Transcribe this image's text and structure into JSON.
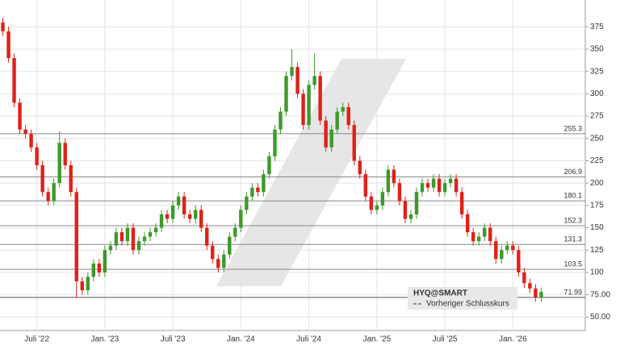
{
  "chart_data": {
    "type": "candlestick",
    "categories": [
      null,
      null,
      null,
      null,
      null,
      null,
      "Juli '22",
      null,
      null,
      null,
      null,
      null,
      null,
      null,
      null,
      null,
      null,
      null,
      "Jan. '23",
      null,
      null,
      null,
      null,
      null,
      null,
      null,
      null,
      null,
      null,
      null,
      "Juli '23",
      null,
      null,
      null,
      null,
      null,
      null,
      null,
      null,
      null,
      null,
      null,
      "Jan. '24",
      null,
      null,
      null,
      null,
      null,
      null,
      null,
      null,
      null,
      null,
      null,
      "Juli '24",
      null,
      null,
      null,
      null,
      null,
      null,
      null,
      null,
      null,
      null,
      null,
      "Jan. '25",
      null,
      null,
      null,
      null,
      null,
      null,
      null,
      null,
      null,
      null,
      null,
      "Juli '25",
      null,
      null,
      null,
      null,
      null,
      null,
      null,
      null,
      null,
      null,
      null,
      "Jan. '26",
      null,
      null,
      null,
      null,
      null
    ],
    "series": [
      {
        "name": "HYQ@SMART",
        "open": [
          380,
          370,
          340,
          290,
          260,
          255,
          240,
          220,
          190,
          180,
          200,
          245,
          220,
          190,
          90,
          80,
          95,
          110,
          100,
          125,
          130,
          145,
          135,
          150,
          125,
          135,
          140,
          145,
          150,
          165,
          160,
          175,
          185,
          165,
          160,
          170,
          150,
          130,
          115,
          105,
          120,
          140,
          150,
          170,
          185,
          195,
          190,
          210,
          230,
          260,
          280,
          320,
          330,
          300,
          265,
          310,
          320,
          270,
          240,
          260,
          280,
          285,
          265,
          225,
          210,
          185,
          170,
          175,
          190,
          215,
          200,
          180,
          160,
          165,
          190,
          200,
          195,
          205,
          190,
          200,
          205,
          190,
          165,
          145,
          135,
          140,
          150,
          135,
          115,
          125,
          130,
          125,
          100,
          88,
          82,
          72
        ],
        "high": [
          385,
          375,
          345,
          295,
          265,
          260,
          245,
          225,
          195,
          205,
          258,
          250,
          225,
          195,
          95,
          100,
          115,
          115,
          130,
          135,
          150,
          150,
          155,
          155,
          140,
          145,
          150,
          155,
          170,
          170,
          180,
          190,
          190,
          170,
          175,
          175,
          155,
          135,
          120,
          125,
          145,
          155,
          175,
          190,
          200,
          200,
          215,
          235,
          265,
          285,
          325,
          350,
          335,
          305,
          315,
          345,
          325,
          275,
          265,
          285,
          290,
          290,
          270,
          230,
          215,
          190,
          180,
          195,
          220,
          220,
          205,
          185,
          170,
          195,
          205,
          205,
          210,
          210,
          205,
          210,
          210,
          195,
          170,
          150,
          145,
          155,
          155,
          140,
          130,
          135,
          135,
          130,
          105,
          93,
          87,
          83
        ],
        "low": [
          365,
          335,
          285,
          255,
          250,
          235,
          215,
          185,
          175,
          175,
          195,
          215,
          185,
          72,
          75,
          75,
          90,
          95,
          95,
          120,
          125,
          130,
          130,
          120,
          120,
          130,
          135,
          140,
          145,
          155,
          155,
          170,
          160,
          155,
          155,
          145,
          125,
          110,
          100,
          100,
          115,
          135,
          145,
          165,
          180,
          185,
          185,
          205,
          225,
          255,
          275,
          315,
          295,
          260,
          260,
          305,
          265,
          235,
          235,
          255,
          275,
          260,
          220,
          205,
          180,
          165,
          165,
          170,
          185,
          195,
          175,
          155,
          155,
          160,
          185,
          190,
          190,
          185,
          185,
          195,
          185,
          160,
          140,
          130,
          130,
          135,
          130,
          110,
          110,
          120,
          120,
          95,
          83,
          77,
          67,
          67
        ],
        "close": [
          370,
          340,
          290,
          260,
          255,
          240,
          220,
          190,
          180,
          200,
          245,
          220,
          190,
          90,
          80,
          95,
          110,
          100,
          125,
          130,
          145,
          135,
          150,
          125,
          135,
          140,
          145,
          150,
          165,
          160,
          175,
          185,
          165,
          160,
          170,
          150,
          130,
          115,
          105,
          120,
          140,
          150,
          170,
          185,
          195,
          190,
          210,
          230,
          260,
          280,
          320,
          330,
          300,
          265,
          310,
          320,
          270,
          240,
          260,
          280,
          285,
          265,
          225,
          210,
          185,
          170,
          175,
          190,
          215,
          200,
          180,
          160,
          165,
          190,
          200,
          195,
          205,
          190,
          200,
          205,
          190,
          165,
          145,
          135,
          140,
          150,
          135,
          115,
          125,
          130,
          125,
          100,
          88,
          82,
          72,
          78
        ]
      }
    ],
    "up_color": "#3c9a2a",
    "down_color": "#e02018",
    "levels": [
      255.3,
      206.9,
      180.1,
      152.3,
      131.3,
      103.5
    ],
    "previous_close": {
      "name": "Vorheriger Schlusskurs",
      "value": 71.99
    },
    "ylim": [
      35,
      405
    ],
    "yticks": [
      {
        "value": 50,
        "label": "50.00"
      },
      {
        "value": 75,
        "label": "75.00"
      },
      100,
      125,
      150,
      175,
      200,
      225,
      250,
      275,
      300,
      325,
      350,
      375
    ],
    "grid": true
  }
}
